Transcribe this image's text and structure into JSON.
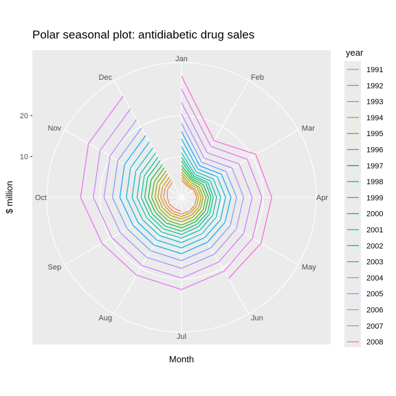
{
  "chart_data": {
    "type": "line",
    "coordinate_system": "polar",
    "title": "Polar seasonal plot: antidiabetic drug sales",
    "xlabel": "Month",
    "ylabel": "$ million",
    "x": [
      "Jan",
      "Feb",
      "Mar",
      "Apr",
      "May",
      "Jun",
      "Jul",
      "Aug",
      "Sep",
      "Oct",
      "Nov",
      "Dec"
    ],
    "radial_ticks": [
      "10",
      "20"
    ],
    "radial_tick_values": [
      10,
      20
    ],
    "ylim": [
      0,
      33
    ],
    "grid": true,
    "legend": {
      "title": "year",
      "position": "right"
    },
    "series": [
      {
        "name": "1991",
        "color": "#F8766D",
        "values": [
          null,
          null,
          null,
          null,
          null,
          null,
          3.5,
          3.2,
          3.4,
          3.5,
          3.9,
          4.4
        ]
      },
      {
        "name": "1992",
        "color": "#E7851E",
        "values": [
          4.1,
          3.1,
          3.5,
          3.7,
          3.8,
          3.9,
          4.1,
          4.0,
          4.0,
          4.4,
          4.6,
          5.1
        ]
      },
      {
        "name": "1993",
        "color": "#D09400",
        "values": [
          4.8,
          3.4,
          3.9,
          4.2,
          4.3,
          4.4,
          4.7,
          4.6,
          4.6,
          5.1,
          5.3,
          5.8
        ]
      },
      {
        "name": "1994",
        "color": "#B2A100",
        "values": [
          5.5,
          3.8,
          4.5,
          4.8,
          4.9,
          5.0,
          5.3,
          5.2,
          5.3,
          5.8,
          6.1,
          6.7
        ]
      },
      {
        "name": "1995",
        "color": "#8BAB00",
        "values": [
          6.2,
          4.3,
          5.0,
          5.3,
          5.4,
          5.6,
          6.0,
          5.9,
          6.0,
          6.5,
          6.9,
          7.5
        ]
      },
      {
        "name": "1996",
        "color": "#55B400",
        "values": [
          7.0,
          4.8,
          5.6,
          6.0,
          6.1,
          6.3,
          6.8,
          6.6,
          6.7,
          7.3,
          7.7,
          8.4
        ]
      },
      {
        "name": "1997",
        "color": "#00BA38",
        "values": [
          7.8,
          5.2,
          6.2,
          6.6,
          6.7,
          6.9,
          7.5,
          7.3,
          7.4,
          8.1,
          8.6,
          9.3
        ]
      },
      {
        "name": "1998",
        "color": "#00BE6C",
        "values": [
          8.9,
          5.6,
          6.9,
          7.2,
          7.4,
          7.6,
          8.3,
          8.1,
          8.2,
          9.0,
          9.6,
          10.4
        ]
      },
      {
        "name": "1999",
        "color": "#00C08E",
        "values": [
          9.8,
          6.0,
          7.4,
          7.8,
          8.0,
          8.3,
          9.1,
          8.9,
          9.0,
          9.9,
          10.5,
          11.4
        ]
      },
      {
        "name": "2000",
        "color": "#00BFAB",
        "values": [
          10.9,
          6.5,
          8.1,
          8.6,
          8.8,
          9.2,
          10.0,
          9.8,
          9.9,
          10.9,
          11.6,
          12.6
        ]
      },
      {
        "name": "2001",
        "color": "#00BCC4",
        "values": [
          12.4,
          7.2,
          9.0,
          9.6,
          9.8,
          10.2,
          11.1,
          10.8,
          11.0,
          12.1,
          12.9,
          14.0
        ]
      },
      {
        "name": "2002",
        "color": "#00B5DD",
        "values": [
          14.3,
          8.0,
          10.1,
          10.8,
          11.0,
          11.4,
          12.4,
          12.1,
          12.3,
          13.5,
          14.4,
          15.7
        ]
      },
      {
        "name": "2003",
        "color": "#00A9FF",
        "values": [
          16.1,
          8.9,
          11.3,
          12.1,
          12.3,
          12.7,
          13.8,
          13.5,
          13.7,
          15.1,
          16.1,
          17.5
        ]
      },
      {
        "name": "2004",
        "color": "#7997FF",
        "values": [
          18.1,
          9.9,
          12.6,
          13.5,
          13.8,
          14.3,
          15.5,
          15.1,
          15.4,
          16.9,
          18.0,
          19.6
        ]
      },
      {
        "name": "2005",
        "color": "#AC88FF",
        "values": [
          20.4,
          11.1,
          14.3,
          15.2,
          15.5,
          16.1,
          17.4,
          17.0,
          17.3,
          19.0,
          20.2,
          22.0
        ]
      },
      {
        "name": "2006",
        "color": "#CE79FF",
        "values": [
          23.2,
          12.6,
          16.3,
          17.3,
          17.6,
          18.3,
          19.8,
          19.3,
          19.7,
          21.6,
          23.0,
          25.0
        ]
      },
      {
        "name": "2007",
        "color": "#E76BF3",
        "values": [
          26.5,
          14.4,
          18.6,
          19.7,
          20.1,
          20.9,
          22.6,
          22.0,
          22.5,
          24.7,
          26.3,
          28.6
        ]
      },
      {
        "name": "2008",
        "color": "#FA62DB",
        "values": [
          29.7,
          16.0,
          21.0,
          22.1,
          22.5,
          23.0,
          null,
          null,
          null,
          null,
          null,
          null
        ]
      }
    ]
  }
}
